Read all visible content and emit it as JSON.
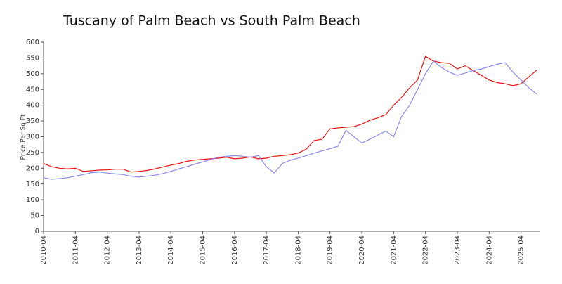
{
  "chart_data": {
    "type": "line",
    "title": "Tuscany of Palm Beach vs South Palm Beach",
    "ylabel": "Price Per Sq Ft",
    "x": [
      "2010-04",
      "2010-07",
      "2010-10",
      "2011-01",
      "2011-04",
      "2011-07",
      "2011-10",
      "2012-01",
      "2012-04",
      "2012-07",
      "2012-10",
      "2013-01",
      "2013-04",
      "2013-07",
      "2013-10",
      "2014-01",
      "2014-04",
      "2014-07",
      "2014-10",
      "2015-01",
      "2015-04",
      "2015-07",
      "2015-10",
      "2016-01",
      "2016-04",
      "2016-07",
      "2016-10",
      "2017-01",
      "2017-04",
      "2017-07",
      "2017-10",
      "2018-01",
      "2018-04",
      "2018-07",
      "2018-10",
      "2019-01",
      "2019-04",
      "2019-07",
      "2019-10",
      "2020-01",
      "2020-04",
      "2020-07",
      "2020-10",
      "2021-01",
      "2021-04",
      "2021-07",
      "2021-10",
      "2022-01",
      "2022-04",
      "2022-07",
      "2022-10",
      "2023-01",
      "2023-04",
      "2023-07",
      "2023-10",
      "2024-01",
      "2024-04",
      "2024-07",
      "2024-10",
      "2025-01",
      "2025-04",
      "2025-07",
      "2025-10"
    ],
    "series": [
      {
        "color": "#ee1111",
        "values": [
          215,
          205,
          200,
          198,
          200,
          190,
          192,
          194,
          195,
          197,
          197,
          188,
          190,
          193,
          198,
          204,
          210,
          215,
          222,
          226,
          228,
          230,
          232,
          235,
          230,
          232,
          236,
          230,
          232,
          238,
          240,
          243,
          248,
          260,
          288,
          292,
          325,
          328,
          330,
          332,
          340,
          352,
          360,
          370,
          400,
          425,
          455,
          480,
          555,
          540,
          535,
          533,
          515,
          525,
          510,
          495,
          480,
          472,
          468,
          462,
          468,
          490,
          512
        ]
      },
      {
        "color": "#8888ee",
        "values": [
          170,
          165,
          167,
          170,
          175,
          180,
          186,
          188,
          185,
          182,
          180,
          175,
          172,
          175,
          178,
          183,
          190,
          198,
          205,
          213,
          220,
          228,
          235,
          238,
          240,
          238,
          235,
          240,
          205,
          185,
          215,
          225,
          232,
          240,
          248,
          255,
          262,
          270,
          320,
          300,
          280,
          292,
          305,
          318,
          300,
          365,
          400,
          450,
          500,
          540,
          520,
          505,
          495,
          502,
          510,
          515,
          522,
          530,
          535,
          505,
          480,
          455,
          435
        ]
      }
    ],
    "xlim": [
      "2010-04",
      "2025-11"
    ],
    "xticks": [
      "2010-04",
      "2011-04",
      "2012-04",
      "2013-04",
      "2014-04",
      "2015-04",
      "2016-04",
      "2017-04",
      "2018-04",
      "2019-04",
      "2020-04",
      "2021-04",
      "2022-04",
      "2023-04",
      "2024-04",
      "2025-04"
    ],
    "ylim": [
      0,
      600
    ],
    "yticks": [
      0,
      50,
      100,
      150,
      200,
      250,
      300,
      350,
      400,
      450,
      500,
      550,
      600
    ]
  }
}
